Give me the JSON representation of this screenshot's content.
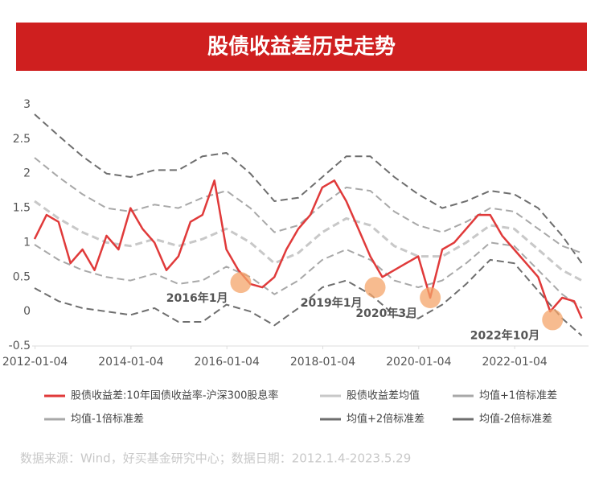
{
  "chart_data": {
    "type": "line",
    "title": "股债收益差历史走势",
    "source": "数据来源：Wind，好买基金研究中心；数据日期：2012.1.4-2023.5.29",
    "xlim": [
      2011.95,
      2023.55
    ],
    "xticks": [
      {
        "value": 2012.01,
        "label": "2012-01-04"
      },
      {
        "value": 2014.01,
        "label": "2014-01-04"
      },
      {
        "value": 2016.01,
        "label": "2016-01-04"
      },
      {
        "value": 2018.01,
        "label": "2018-01-04"
      },
      {
        "value": 2020.01,
        "label": "2020-01-04"
      },
      {
        "value": 2022.01,
        "label": "2022-01-04"
      }
    ],
    "ylim": [
      -0.5,
      3
    ],
    "yticks": [
      3,
      2.5,
      2,
      1.5,
      1,
      0.5,
      0,
      -0.5
    ],
    "grid": false,
    "series": [
      {
        "name": "股债收益差:10年国债收益率-沪深300股息率",
        "color": "#e03a3a",
        "dashed": false,
        "width": 2.5,
        "x": [
          2012.0,
          2012.25,
          2012.5,
          2012.75,
          2013.0,
          2013.25,
          2013.5,
          2013.75,
          2014.0,
          2014.25,
          2014.5,
          2014.75,
          2015.0,
          2015.25,
          2015.5,
          2015.75,
          2016.0,
          2016.25,
          2016.5,
          2016.75,
          2017.0,
          2017.25,
          2017.5,
          2017.75,
          2018.0,
          2018.25,
          2018.5,
          2018.75,
          2019.0,
          2019.25,
          2019.5,
          2019.75,
          2020.0,
          2020.25,
          2020.5,
          2020.75,
          2021.0,
          2021.25,
          2021.5,
          2021.75,
          2022.0,
          2022.25,
          2022.5,
          2022.75,
          2023.0,
          2023.25,
          2023.41
        ],
        "values": [
          1.05,
          1.4,
          1.3,
          0.7,
          0.9,
          0.6,
          1.1,
          0.9,
          1.5,
          1.2,
          1.0,
          0.6,
          0.8,
          1.3,
          1.4,
          1.9,
          0.9,
          0.6,
          0.4,
          0.35,
          0.5,
          0.9,
          1.2,
          1.4,
          1.8,
          1.9,
          1.6,
          1.2,
          0.8,
          0.5,
          0.6,
          0.7,
          0.8,
          0.2,
          0.9,
          1.0,
          1.2,
          1.4,
          1.4,
          1.1,
          0.9,
          0.7,
          0.5,
          0.0,
          0.2,
          0.15,
          -0.1
        ]
      },
      {
        "name": "股债收益差均值",
        "color": "#c8c8c8",
        "dashed": true,
        "width": 3,
        "x": [
          2012.0,
          2012.5,
          2013.0,
          2013.5,
          2014.0,
          2014.5,
          2015.0,
          2015.5,
          2016.0,
          2016.5,
          2017.0,
          2017.5,
          2018.0,
          2018.5,
          2019.0,
          2019.5,
          2020.0,
          2020.5,
          2021.0,
          2021.5,
          2022.0,
          2022.5,
          2023.0,
          2023.41
        ],
        "values": [
          1.6,
          1.35,
          1.15,
          1.0,
          0.95,
          1.05,
          0.95,
          1.05,
          1.2,
          1.0,
          0.7,
          0.85,
          1.15,
          1.35,
          1.25,
          0.95,
          0.8,
          0.8,
          1.0,
          1.25,
          1.2,
          0.9,
          0.6,
          0.45
        ]
      },
      {
        "name": "均值+1倍标准差",
        "color": "#a8a8a8",
        "dashed": true,
        "width": 2,
        "x": [
          2012.0,
          2012.5,
          2013.0,
          2013.5,
          2014.0,
          2014.5,
          2015.0,
          2015.5,
          2016.0,
          2016.5,
          2017.0,
          2017.5,
          2018.0,
          2018.5,
          2019.0,
          2019.5,
          2020.0,
          2020.5,
          2021.0,
          2021.5,
          2022.0,
          2022.5,
          2023.0,
          2023.41
        ],
        "values": [
          2.23,
          1.95,
          1.7,
          1.5,
          1.45,
          1.55,
          1.5,
          1.65,
          1.75,
          1.5,
          1.15,
          1.25,
          1.55,
          1.8,
          1.75,
          1.45,
          1.25,
          1.15,
          1.3,
          1.5,
          1.45,
          1.2,
          0.95,
          0.85
        ]
      },
      {
        "name": "均值-1倍标准差",
        "color": "#a8a8a8",
        "dashed": true,
        "width": 2,
        "x": [
          2012.0,
          2012.5,
          2013.0,
          2013.5,
          2014.0,
          2014.5,
          2015.0,
          2015.5,
          2016.0,
          2016.5,
          2017.0,
          2017.5,
          2018.0,
          2018.5,
          2019.0,
          2019.5,
          2020.0,
          2020.5,
          2021.0,
          2021.5,
          2022.0,
          2022.5,
          2023.0,
          2023.41
        ],
        "values": [
          0.97,
          0.75,
          0.6,
          0.5,
          0.45,
          0.55,
          0.4,
          0.45,
          0.65,
          0.5,
          0.25,
          0.45,
          0.75,
          0.9,
          0.75,
          0.45,
          0.35,
          0.45,
          0.7,
          1.0,
          0.95,
          0.6,
          0.25,
          0.05
        ]
      },
      {
        "name": "均值+2倍标准差",
        "color": "#6e6e6e",
        "dashed": true,
        "width": 2,
        "x": [
          2012.0,
          2012.5,
          2013.0,
          2013.5,
          2014.0,
          2014.5,
          2015.0,
          2015.5,
          2016.0,
          2016.5,
          2017.0,
          2017.5,
          2018.0,
          2018.5,
          2019.0,
          2019.5,
          2020.0,
          2020.5,
          2021.0,
          2021.5,
          2022.0,
          2022.5,
          2023.0,
          2023.41
        ],
        "values": [
          2.86,
          2.55,
          2.25,
          2.0,
          1.95,
          2.05,
          2.05,
          2.25,
          2.3,
          2.0,
          1.6,
          1.65,
          1.95,
          2.25,
          2.25,
          1.95,
          1.7,
          1.5,
          1.6,
          1.75,
          1.7,
          1.5,
          1.1,
          0.7
        ]
      },
      {
        "name": "均值-2倍标准差",
        "color": "#6e6e6e",
        "dashed": true,
        "width": 2,
        "x": [
          2012.0,
          2012.5,
          2013.0,
          2013.5,
          2014.0,
          2014.5,
          2015.0,
          2015.5,
          2016.0,
          2016.5,
          2017.0,
          2017.5,
          2018.0,
          2018.5,
          2019.0,
          2019.5,
          2020.0,
          2020.5,
          2021.0,
          2021.5,
          2022.0,
          2022.5,
          2023.0,
          2023.41
        ],
        "values": [
          0.34,
          0.15,
          0.05,
          0.0,
          -0.05,
          0.05,
          -0.15,
          -0.15,
          0.1,
          0.0,
          -0.2,
          0.05,
          0.35,
          0.45,
          0.25,
          -0.05,
          -0.1,
          0.1,
          0.4,
          0.75,
          0.7,
          0.3,
          -0.1,
          -0.35
        ]
      }
    ],
    "annotations": [
      {
        "text": "2016年1月",
        "x": 2016.3,
        "y": 0.42
      },
      {
        "text": "2019年1月",
        "x": 2019.1,
        "y": 0.35
      },
      {
        "text": "2020年3月",
        "x": 2020.25,
        "y": 0.2
      },
      {
        "text": "2022年10月",
        "x": 2022.8,
        "y": -0.12
      }
    ]
  }
}
